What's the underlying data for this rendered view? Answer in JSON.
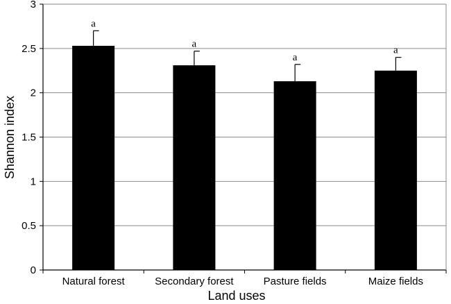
{
  "chart_data": {
    "type": "bar",
    "categories": [
      "Natural forest",
      "Secondary forest",
      "Pasture fields",
      "Maize fields"
    ],
    "values": [
      2.53,
      2.31,
      2.13,
      2.25
    ],
    "errors": [
      0.17,
      0.16,
      0.19,
      0.15
    ],
    "significance_labels": [
      "a",
      "a",
      "a",
      "a"
    ],
    "xlabel": "Land uses",
    "ylabel": "Shannon index",
    "ylim": [
      0,
      3
    ],
    "yticks": [
      0,
      0.5,
      1,
      1.5,
      2,
      2.5,
      3
    ],
    "ytick_labels": [
      "0",
      "0.5",
      "1",
      "1.5",
      "2",
      "2.5",
      "3"
    ],
    "grid": "horizontal",
    "bar_color": "#000000"
  }
}
